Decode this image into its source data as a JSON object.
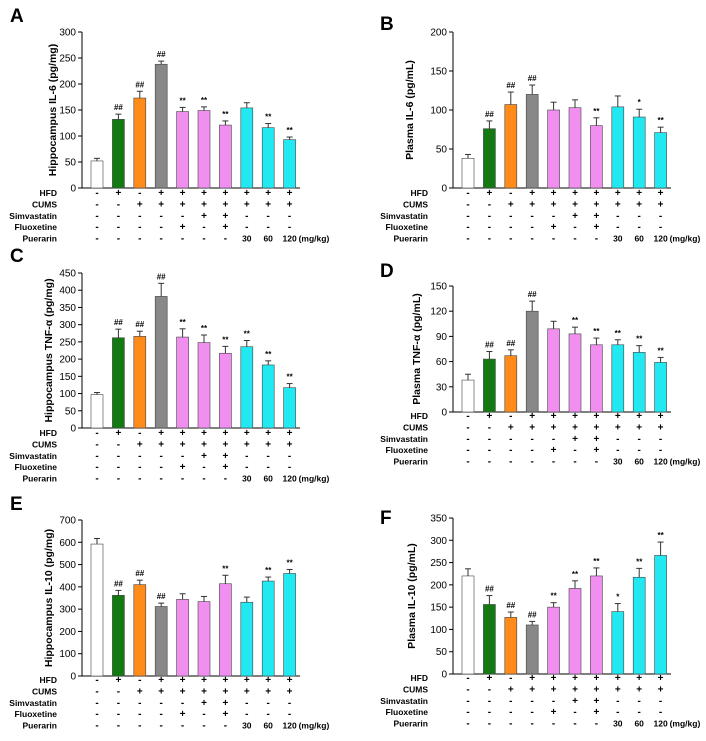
{
  "colors": {
    "control": "#ffffff",
    "hfd": "#137a13",
    "hfd_cums": "#ff8c1a",
    "model": "#888888",
    "drug": "#f08ff0",
    "puerarin": "#22e8f2"
  },
  "bar_colors": [
    "control",
    "hfd",
    "hfd_cums",
    "model",
    "drug",
    "drug",
    "drug",
    "puerarin",
    "puerarin",
    "puerarin"
  ],
  "treatment_rows": [
    {
      "label": "HFD",
      "signs": [
        "-",
        "+",
        "-",
        "+",
        "+",
        "+",
        "+",
        "+",
        "+",
        "+"
      ]
    },
    {
      "label": "CUMS",
      "signs": [
        "-",
        "-",
        "+",
        "+",
        "+",
        "+",
        "+",
        "+",
        "+",
        "+"
      ]
    },
    {
      "label": "Simvastatin",
      "signs": [
        "-",
        "-",
        "-",
        "-",
        "-",
        "+",
        "+",
        "-",
        "-",
        "-"
      ]
    },
    {
      "label": "Fluoxetine",
      "signs": [
        "-",
        "-",
        "-",
        "-",
        "+",
        "-",
        "+",
        "-",
        "-",
        "-"
      ]
    },
    {
      "label": "Puerarin",
      "signs": [
        "-",
        "-",
        "-",
        "-",
        "-",
        "-",
        "-",
        "30",
        "60",
        "120"
      ]
    }
  ],
  "dose_unit": "(mg/kg)",
  "chart_data": [
    {
      "panel": "A",
      "type": "bar",
      "ylabel": "Hippocampus IL-6 (pg/mg)",
      "ylim": [
        0,
        300
      ],
      "yticks": [
        "0",
        "50",
        "100",
        "150",
        "200",
        "250",
        "300"
      ],
      "values": [
        52,
        132,
        173,
        238,
        147,
        149,
        121,
        154,
        116,
        93
      ],
      "errors": [
        5,
        10,
        13,
        6,
        8,
        7,
        8,
        10,
        8,
        5
      ],
      "significance": [
        "",
        "##",
        "##",
        "##",
        "**",
        "**",
        "**",
        "",
        "**",
        "**"
      ]
    },
    {
      "panel": "B",
      "type": "bar",
      "ylabel": "Plasma IL-6 (pg/mL)",
      "ylim": [
        0,
        200
      ],
      "yticks": [
        "0",
        "50",
        "100",
        "150",
        "200"
      ],
      "values": [
        38,
        76,
        107,
        120,
        100,
        103,
        80,
        104,
        91,
        71
      ],
      "errors": [
        5,
        10,
        16,
        12,
        10,
        10,
        10,
        14,
        10,
        7
      ],
      "significance": [
        "",
        "##",
        "##",
        "##",
        "",
        "",
        "**",
        "",
        "*",
        "**"
      ]
    },
    {
      "panel": "C",
      "type": "bar",
      "ylabel": "Hippocampus TNF-α (pg/mg)",
      "ylim": [
        0,
        450
      ],
      "yticks": [
        "0",
        "50",
        "100",
        "150",
        "200",
        "250",
        "300",
        "350",
        "400",
        "450"
      ],
      "values": [
        97,
        262,
        266,
        382,
        264,
        248,
        217,
        236,
        183,
        117
      ],
      "errors": [
        6,
        25,
        15,
        38,
        24,
        22,
        20,
        18,
        12,
        12
      ],
      "significance": [
        "",
        "##",
        "##",
        "##",
        "**",
        "**",
        "**",
        "**",
        "**",
        "**"
      ]
    },
    {
      "panel": "D",
      "type": "bar",
      "ylabel": "Plasma TNF-α (pg/mL)",
      "ylim": [
        0,
        150
      ],
      "yticks": [
        "0",
        "30",
        "60",
        "90",
        "120",
        "150"
      ],
      "values": [
        38,
        63,
        67,
        120,
        99,
        93,
        80,
        80,
        71,
        59
      ],
      "errors": [
        7,
        9,
        7,
        12,
        9,
        8,
        8,
        6,
        8,
        6
      ],
      "significance": [
        "",
        "##",
        "##",
        "##",
        "",
        "**",
        "**",
        "**",
        "**",
        "**"
      ]
    },
    {
      "panel": "E",
      "type": "bar",
      "ylabel": "Hippocampus IL-10 (pg/mg)",
      "ylim": [
        0,
        700
      ],
      "yticks": [
        "0",
        "100",
        "200",
        "300",
        "400",
        "500",
        "600",
        "700"
      ],
      "values": [
        592,
        362,
        410,
        312,
        344,
        334,
        414,
        331,
        426,
        460
      ],
      "errors": [
        25,
        22,
        20,
        15,
        25,
        23,
        38,
        23,
        18,
        18
      ],
      "significance": [
        "",
        "##",
        "##",
        "##",
        "",
        "",
        "**",
        "",
        "**",
        "**"
      ]
    },
    {
      "panel": "F",
      "type": "bar",
      "ylabel": "Plasma IL-10 (pg/mL)",
      "ylim": [
        0,
        350
      ],
      "yticks": [
        "0",
        "50",
        "100",
        "150",
        "200",
        "250",
        "300",
        "350"
      ],
      "values": [
        220,
        156,
        127,
        110,
        150,
        192,
        220,
        140,
        217,
        266
      ],
      "errors": [
        16,
        20,
        12,
        8,
        10,
        17,
        18,
        18,
        20,
        30
      ],
      "significance": [
        "",
        "##",
        "##",
        "##",
        "**",
        "**",
        "**",
        "*",
        "**",
        "**"
      ]
    }
  ]
}
